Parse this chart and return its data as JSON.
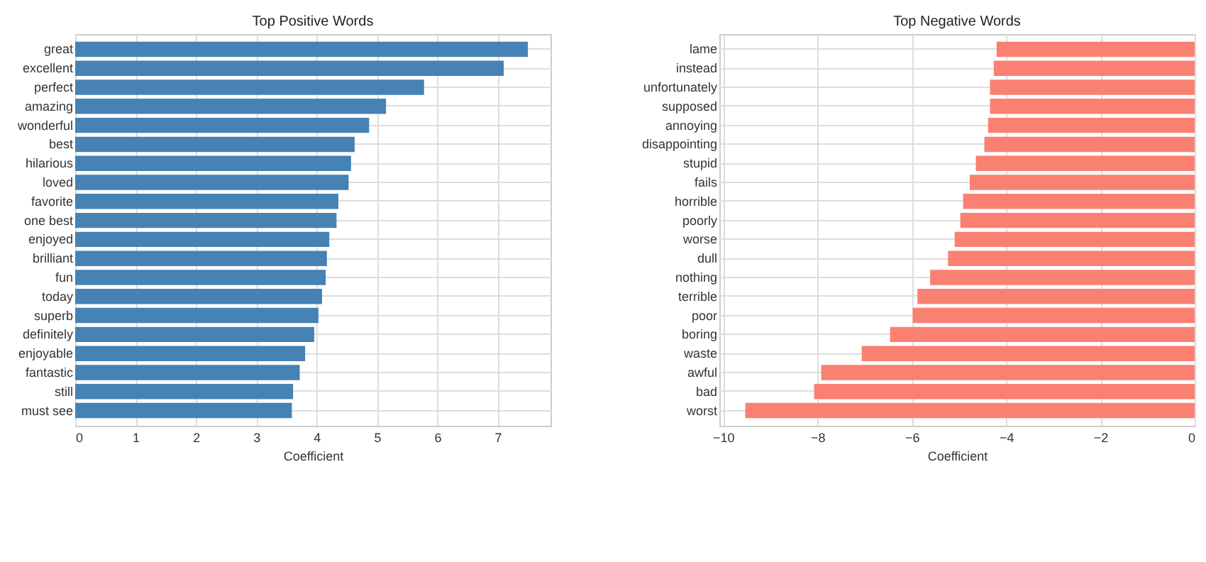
{
  "chart_data": [
    {
      "type": "bar",
      "orientation": "horizontal",
      "title": "Top Positive Words",
      "xlabel": "Coefficient",
      "grid": true,
      "categories": [
        "great",
        "excellent",
        "perfect",
        "amazing",
        "wonderful",
        "best",
        "hilarious",
        "loved",
        "favorite",
        "one best",
        "enjoyed",
        "brilliant",
        "fun",
        "today",
        "superb",
        "definitely",
        "enjoyable",
        "fantastic",
        "still",
        "must see"
      ],
      "values": [
        7.5,
        7.1,
        5.78,
        5.15,
        4.87,
        4.63,
        4.57,
        4.53,
        4.36,
        4.33,
        4.21,
        4.17,
        4.15,
        4.09,
        4.03,
        3.96,
        3.81,
        3.72,
        3.61,
        3.59
      ],
      "color": "#4682b4",
      "xlim": [
        0,
        7.875
      ],
      "xticks": [
        0,
        1,
        2,
        3,
        4,
        5,
        6,
        7
      ]
    },
    {
      "type": "bar",
      "orientation": "horizontal",
      "title": "Top Negative Words",
      "xlabel": "Coefficient",
      "grid": true,
      "categories": [
        "lame",
        "instead",
        "unfortunately",
        "supposed",
        "annoying",
        "disappointing",
        "stupid",
        "fails",
        "horrible",
        "poorly",
        "worse",
        "dull",
        "nothing",
        "terrible",
        "poor",
        "boring",
        "waste",
        "awful",
        "bad",
        "worst"
      ],
      "values": [
        -4.2,
        -4.26,
        -4.34,
        -4.34,
        -4.38,
        -4.46,
        -4.64,
        -4.77,
        -4.91,
        -4.97,
        -5.09,
        -5.23,
        -5.61,
        -5.88,
        -5.98,
        -6.46,
        -7.06,
        -7.92,
        -8.07,
        -9.53
      ],
      "color": "#fa8072",
      "xlim": [
        -10.08,
        0
      ],
      "xticks": [
        -10,
        -8,
        -6,
        -4,
        -2,
        0
      ]
    }
  ]
}
